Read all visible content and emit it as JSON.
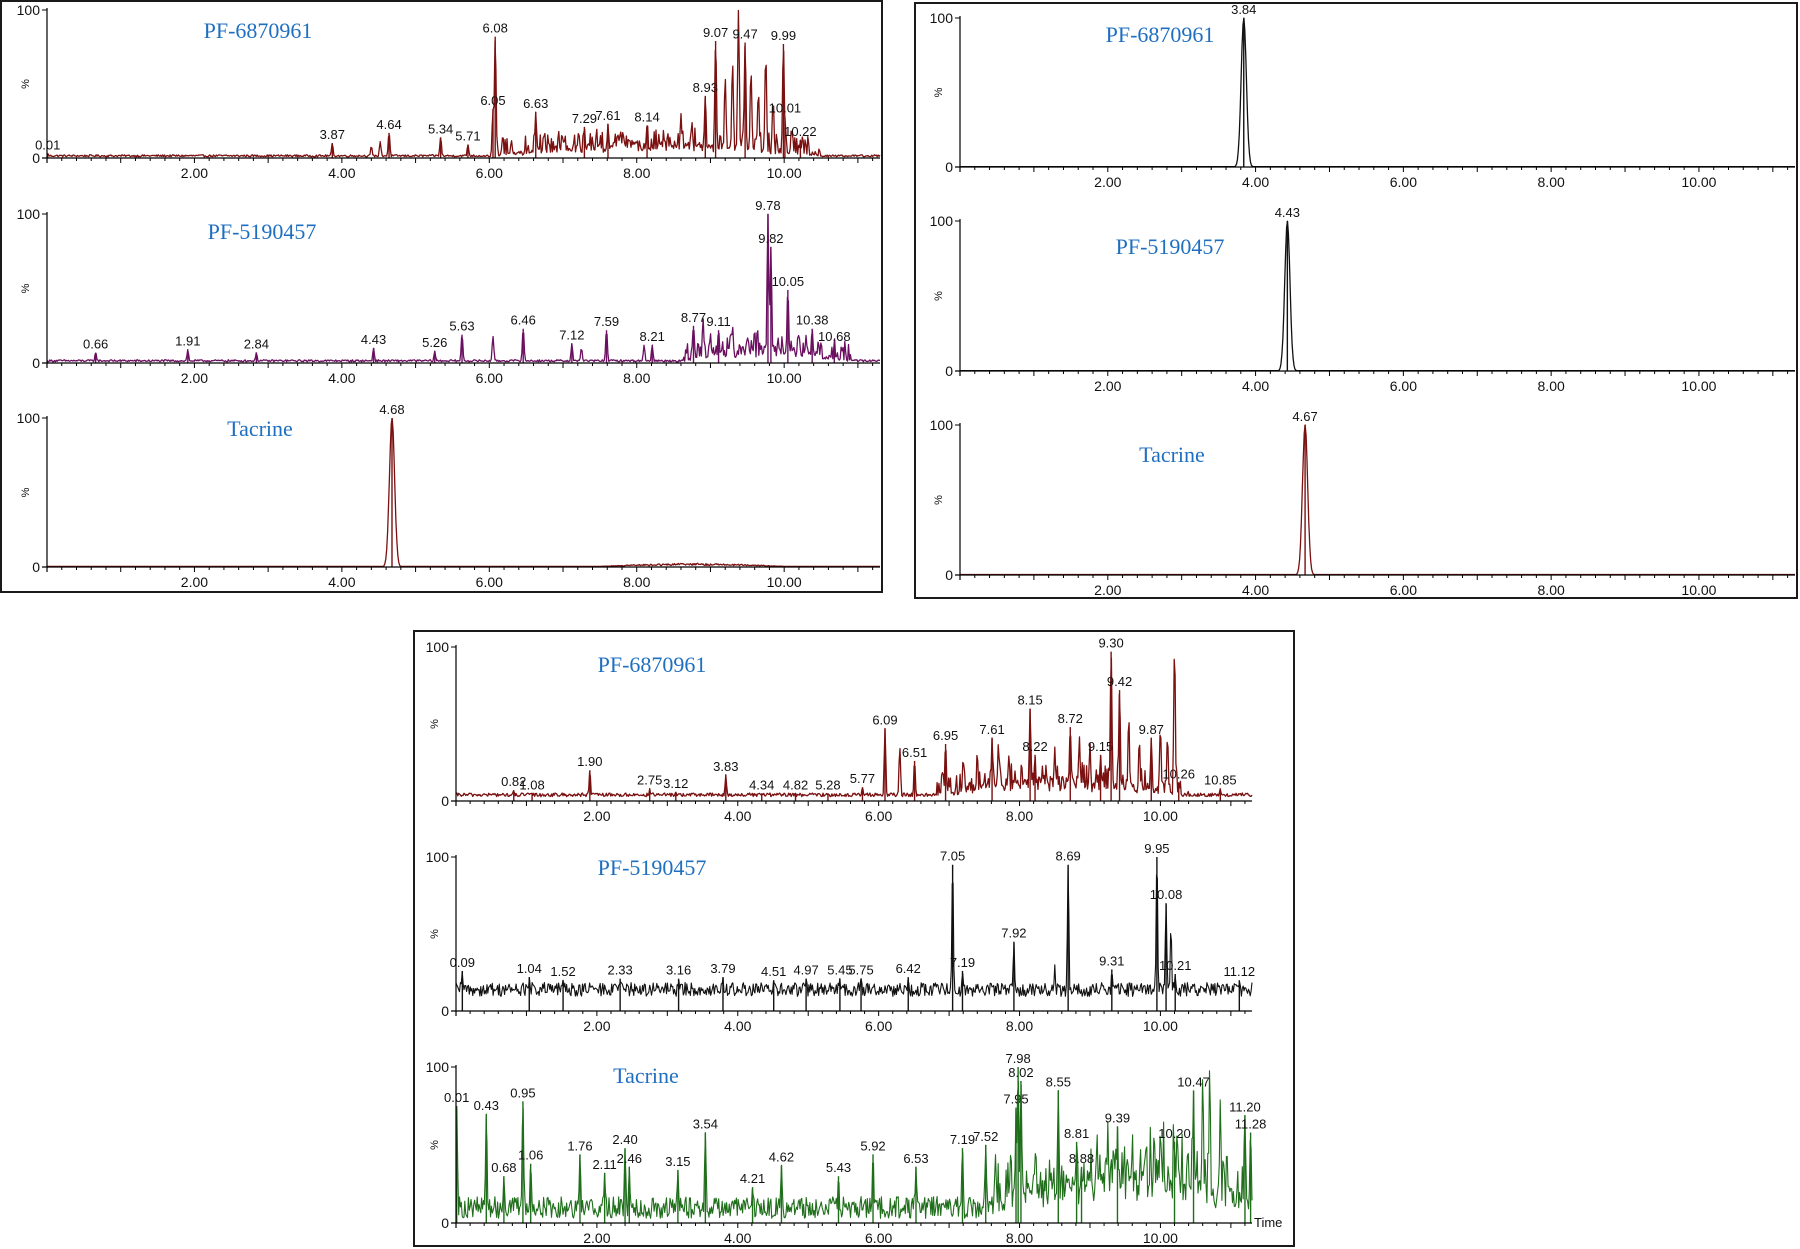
{
  "figure": {
    "colors": {
      "red": "#7a1010",
      "purple": "#6b1060",
      "black": "#111111",
      "green": "#1e6e1a",
      "title": "#1f6fc0"
    }
  },
  "chart_data": [
    {
      "id": "tl1",
      "type": "line",
      "title": "PF-6870961",
      "color": "red",
      "xlim": [
        0,
        11.3
      ],
      "ylim": [
        0,
        100
      ],
      "ylabel": "%",
      "yticks": [
        "0",
        "100"
      ],
      "xticks": [
        "2.00",
        "4.00",
        "6.00",
        "8.00",
        "10.00"
      ],
      "baseline": 1.5,
      "noise": 0.7,
      "bumpRange": [
        6.0,
        10.5
      ],
      "peaks": [
        {
          "x": 0.01,
          "y": 3,
          "label": "0.01"
        },
        {
          "x": 3.87,
          "y": 10,
          "label": "3.87"
        },
        {
          "x": 4.64,
          "y": 17,
          "label": "4.64"
        },
        {
          "x": 5.34,
          "y": 14,
          "label": "5.34"
        },
        {
          "x": 5.71,
          "y": 9,
          "label": "5.71"
        },
        {
          "x": 6.05,
          "y": 33,
          "label": "6.05"
        },
        {
          "x": 6.08,
          "y": 82,
          "label": "6.08"
        },
        {
          "x": 6.63,
          "y": 31,
          "label": "6.63"
        },
        {
          "x": 7.29,
          "y": 21,
          "label": "7.29"
        },
        {
          "x": 7.61,
          "y": 23,
          "label": "7.61"
        },
        {
          "x": 8.14,
          "y": 22,
          "label": "8.14"
        },
        {
          "x": 8.93,
          "y": 42,
          "label": "8.93"
        },
        {
          "x": 9.07,
          "y": 79,
          "label": "9.07"
        },
        {
          "x": 9.47,
          "y": 78,
          "label": "9.47"
        },
        {
          "x": 9.99,
          "y": 77,
          "label": "9.99"
        },
        {
          "x": 10.01,
          "y": 28,
          "label": "10.01"
        },
        {
          "x": 10.22,
          "y": 12,
          "label": "10.22"
        }
      ],
      "peaks_nolabel": [
        {
          "x": 4.4,
          "y": 8
        },
        {
          "x": 4.52,
          "y": 11
        },
        {
          "x": 6.3,
          "y": 12
        },
        {
          "x": 6.75,
          "y": 18
        },
        {
          "x": 6.9,
          "y": 9
        },
        {
          "x": 7.15,
          "y": 11
        },
        {
          "x": 7.45,
          "y": 15
        },
        {
          "x": 7.75,
          "y": 16
        },
        {
          "x": 7.9,
          "y": 12
        },
        {
          "x": 8.3,
          "y": 16
        },
        {
          "x": 8.45,
          "y": 14
        },
        {
          "x": 8.6,
          "y": 30
        },
        {
          "x": 8.75,
          "y": 24
        },
        {
          "x": 9.2,
          "y": 55
        },
        {
          "x": 9.3,
          "y": 65
        },
        {
          "x": 9.38,
          "y": 100
        },
        {
          "x": 9.55,
          "y": 60
        },
        {
          "x": 9.65,
          "y": 45
        },
        {
          "x": 9.75,
          "y": 70
        },
        {
          "x": 9.85,
          "y": 40
        },
        {
          "x": 10.1,
          "y": 20
        }
      ]
    },
    {
      "id": "tl2",
      "type": "line",
      "title": "PF-5190457",
      "color": "purple",
      "xlim": [
        0,
        11.3
      ],
      "ylim": [
        0,
        100
      ],
      "ylabel": "%",
      "yticks": [
        "0",
        "100"
      ],
      "xticks": [
        "2.00",
        "4.00",
        "6.00",
        "8.00",
        "10.00"
      ],
      "baseline": 1.5,
      "noise": 0.7,
      "bumpRange": [
        8.6,
        10.9
      ],
      "peaks": [
        {
          "x": 0.66,
          "y": 7,
          "label": "0.66"
        },
        {
          "x": 1.91,
          "y": 9,
          "label": "1.91"
        },
        {
          "x": 2.84,
          "y": 7,
          "label": "2.84"
        },
        {
          "x": 4.43,
          "y": 10,
          "label": "4.43"
        },
        {
          "x": 5.26,
          "y": 8,
          "label": "5.26"
        },
        {
          "x": 5.63,
          "y": 19,
          "label": "5.63"
        },
        {
          "x": 6.46,
          "y": 23,
          "label": "6.46"
        },
        {
          "x": 7.12,
          "y": 13,
          "label": "7.12"
        },
        {
          "x": 7.59,
          "y": 22,
          "label": "7.59"
        },
        {
          "x": 8.21,
          "y": 12,
          "label": "8.21"
        },
        {
          "x": 8.77,
          "y": 25,
          "label": "8.77"
        },
        {
          "x": 9.11,
          "y": 22,
          "label": "9.11"
        },
        {
          "x": 9.78,
          "y": 100,
          "label": "9.78"
        },
        {
          "x": 9.82,
          "y": 78,
          "label": "9.82"
        },
        {
          "x": 10.05,
          "y": 49,
          "label": "10.05"
        },
        {
          "x": 10.38,
          "y": 23,
          "label": "10.38"
        },
        {
          "x": 10.68,
          "y": 12,
          "label": "10.68"
        }
      ],
      "peaks_nolabel": [
        {
          "x": 6.05,
          "y": 18
        },
        {
          "x": 7.25,
          "y": 10
        },
        {
          "x": 8.1,
          "y": 12
        },
        {
          "x": 8.9,
          "y": 30
        },
        {
          "x": 9.0,
          "y": 20
        },
        {
          "x": 9.3,
          "y": 25
        },
        {
          "x": 9.5,
          "y": 18
        },
        {
          "x": 10.2,
          "y": 20
        },
        {
          "x": 10.5,
          "y": 14
        }
      ]
    },
    {
      "id": "tl3",
      "type": "line",
      "title": "Tacrine",
      "color": "red",
      "xlim": [
        0,
        11.3
      ],
      "ylim": [
        0,
        100
      ],
      "ylabel": "%",
      "yticks": [
        "0",
        "100"
      ],
      "xticks": [
        "2.00",
        "4.00",
        "6.00",
        "8.00",
        "10.00"
      ],
      "baseline": 0.4,
      "noise": 0.0,
      "bumpRange": [
        7.5,
        10.0
      ],
      "peaks": [
        {
          "x": 4.68,
          "y": 100,
          "label": "4.68",
          "wide": true
        }
      ],
      "peaks_nolabel": []
    },
    {
      "id": "tr1",
      "type": "line",
      "title": "PF-6870961",
      "color": "black",
      "xlim": [
        0,
        11.3
      ],
      "ylim": [
        0,
        100
      ],
      "ylabel": "%",
      "yticks": [
        "0",
        "100"
      ],
      "xticks": [
        "2.00",
        "4.00",
        "6.00",
        "8.00",
        "10.00"
      ],
      "baseline": 0.3,
      "noise": 0.0,
      "bumpRange": [
        0,
        0
      ],
      "peaks": [
        {
          "x": 3.84,
          "y": 100,
          "label": "3.84",
          "wide": true
        }
      ],
      "peaks_nolabel": []
    },
    {
      "id": "tr2",
      "type": "line",
      "title": "PF-5190457",
      "color": "black",
      "xlim": [
        0,
        11.3
      ],
      "ylim": [
        0,
        100
      ],
      "ylabel": "%",
      "yticks": [
        "0",
        "100"
      ],
      "xticks": [
        "2.00",
        "4.00",
        "6.00",
        "8.00",
        "10.00"
      ],
      "baseline": 0.3,
      "noise": 0.0,
      "bumpRange": [
        0,
        0
      ],
      "peaks": [
        {
          "x": 4.43,
          "y": 100,
          "label": "4.43",
          "wide": true
        }
      ],
      "peaks_nolabel": []
    },
    {
      "id": "tr3",
      "type": "line",
      "title": "Tacrine",
      "color": "red",
      "xlim": [
        0,
        11.3
      ],
      "ylim": [
        0,
        100
      ],
      "ylabel": "%",
      "yticks": [
        "0",
        "100"
      ],
      "xticks": [
        "2.00",
        "4.00",
        "6.00",
        "8.00",
        "10.00"
      ],
      "baseline": 0.3,
      "noise": 0.0,
      "bumpRange": [
        0,
        0
      ],
      "peaks": [
        {
          "x": 4.67,
          "y": 100,
          "label": "4.67",
          "wide": true
        }
      ],
      "peaks_nolabel": []
    },
    {
      "id": "b1",
      "type": "line",
      "title": "PF-6870961",
      "color": "red",
      "xlim": [
        0,
        11.3
      ],
      "ylim": [
        0,
        100
      ],
      "ylabel": "%",
      "yticks": [
        "0",
        "100"
      ],
      "xticks": [
        "2.00",
        "4.00",
        "6.00",
        "8.00",
        "10.00"
      ],
      "baseline": 4,
      "noise": 1.2,
      "bumpRange": [
        6.8,
        10.4
      ],
      "peaks": [
        {
          "x": 0.82,
          "y": 7,
          "label": "0.82"
        },
        {
          "x": 1.08,
          "y": 5,
          "label": "1.08"
        },
        {
          "x": 1.9,
          "y": 20,
          "label": "1.90"
        },
        {
          "x": 2.75,
          "y": 8,
          "label": "2.75"
        },
        {
          "x": 3.12,
          "y": 6,
          "label": "3.12"
        },
        {
          "x": 3.83,
          "y": 17,
          "label": "3.83"
        },
        {
          "x": 4.34,
          "y": 5,
          "label": "4.34"
        },
        {
          "x": 4.82,
          "y": 5,
          "label": "4.82"
        },
        {
          "x": 5.28,
          "y": 5,
          "label": "5.28"
        },
        {
          "x": 5.77,
          "y": 9,
          "label": "5.77"
        },
        {
          "x": 6.09,
          "y": 47,
          "label": "6.09"
        },
        {
          "x": 6.51,
          "y": 26,
          "label": "6.51"
        },
        {
          "x": 6.95,
          "y": 37,
          "label": "6.95"
        },
        {
          "x": 7.61,
          "y": 41,
          "label": "7.61"
        },
        {
          "x": 8.15,
          "y": 60,
          "label": "8.15"
        },
        {
          "x": 8.22,
          "y": 30,
          "label": "8.22"
        },
        {
          "x": 8.72,
          "y": 48,
          "label": "8.72"
        },
        {
          "x": 9.15,
          "y": 30,
          "label": "9.15"
        },
        {
          "x": 9.3,
          "y": 97,
          "label": "9.30"
        },
        {
          "x": 9.42,
          "y": 72,
          "label": "9.42"
        },
        {
          "x": 9.87,
          "y": 41,
          "label": "9.87"
        },
        {
          "x": 10.26,
          "y": 12,
          "label": "10.26"
        },
        {
          "x": 10.85,
          "y": 8,
          "label": "10.85"
        }
      ],
      "peaks_nolabel": [
        {
          "x": 6.3,
          "y": 35
        },
        {
          "x": 7.2,
          "y": 28
        },
        {
          "x": 7.4,
          "y": 32
        },
        {
          "x": 7.7,
          "y": 38
        },
        {
          "x": 7.85,
          "y": 30
        },
        {
          "x": 8.5,
          "y": 35
        },
        {
          "x": 8.85,
          "y": 42
        },
        {
          "x": 9.0,
          "y": 38
        },
        {
          "x": 9.55,
          "y": 55
        },
        {
          "x": 9.7,
          "y": 40
        },
        {
          "x": 10.0,
          "y": 48
        },
        {
          "x": 10.1,
          "y": 42
        },
        {
          "x": 10.2,
          "y": 100
        }
      ]
    },
    {
      "id": "b2",
      "type": "line",
      "title": "PF-5190457",
      "color": "black",
      "xlim": [
        0,
        11.3
      ],
      "ylim": [
        0,
        100
      ],
      "ylabel": "%",
      "yticks": [
        "0",
        "100"
      ],
      "xticks": [
        "2.00",
        "4.00",
        "6.00",
        "8.00",
        "10.00"
      ],
      "baseline": 14,
      "noise": 4.5,
      "bumpRange": [
        0,
        0
      ],
      "peaks": [
        {
          "x": 0.09,
          "y": 26,
          "label": "0.09"
        },
        {
          "x": 1.04,
          "y": 22,
          "label": "1.04"
        },
        {
          "x": 1.52,
          "y": 20,
          "label": "1.52"
        },
        {
          "x": 2.33,
          "y": 21,
          "label": "2.33"
        },
        {
          "x": 3.16,
          "y": 21,
          "label": "3.16"
        },
        {
          "x": 3.79,
          "y": 22,
          "label": "3.79"
        },
        {
          "x": 4.51,
          "y": 20,
          "label": "4.51"
        },
        {
          "x": 4.97,
          "y": 21,
          "label": "4.97"
        },
        {
          "x": 5.45,
          "y": 21,
          "label": "5.45"
        },
        {
          "x": 5.75,
          "y": 21,
          "label": "5.75"
        },
        {
          "x": 6.42,
          "y": 22,
          "label": "6.42"
        },
        {
          "x": 7.05,
          "y": 95,
          "label": "7.05"
        },
        {
          "x": 7.19,
          "y": 26,
          "label": "7.19"
        },
        {
          "x": 7.92,
          "y": 45,
          "label": "7.92"
        },
        {
          "x": 8.69,
          "y": 95,
          "label": "8.69"
        },
        {
          "x": 9.31,
          "y": 27,
          "label": "9.31"
        },
        {
          "x": 9.95,
          "y": 100,
          "label": "9.95"
        },
        {
          "x": 10.08,
          "y": 70,
          "label": "10.08"
        },
        {
          "x": 10.21,
          "y": 24,
          "label": "10.21"
        },
        {
          "x": 11.12,
          "y": 20,
          "label": "11.12"
        }
      ],
      "peaks_nolabel": [
        {
          "x": 8.5,
          "y": 30
        },
        {
          "x": 10.15,
          "y": 55
        }
      ]
    },
    {
      "id": "b3",
      "type": "line",
      "title": "Tacrine",
      "color": "green",
      "xlim": [
        0,
        11.3
      ],
      "ylim": [
        0,
        100
      ],
      "ylabel": "%",
      "yticks": [
        "0",
        "100"
      ],
      "xticks": [
        "2.00",
        "4.00",
        "6.00",
        "8.00",
        "10.00"
      ],
      "xAxisLabel": "Time",
      "baseline": 10,
      "noise": 7,
      "bumpRange": [
        7.5,
        11.3
      ],
      "peaks": [
        {
          "x": 0.01,
          "y": 75,
          "label": "0.01"
        },
        {
          "x": 0.43,
          "y": 70,
          "label": "0.43"
        },
        {
          "x": 0.68,
          "y": 30,
          "label": "0.68"
        },
        {
          "x": 0.95,
          "y": 78,
          "label": "0.95"
        },
        {
          "x": 1.06,
          "y": 38,
          "label": "1.06"
        },
        {
          "x": 1.76,
          "y": 44,
          "label": "1.76"
        },
        {
          "x": 2.11,
          "y": 32,
          "label": "2.11"
        },
        {
          "x": 2.4,
          "y": 48,
          "label": "2.40"
        },
        {
          "x": 2.46,
          "y": 36,
          "label": "2.46"
        },
        {
          "x": 3.15,
          "y": 34,
          "label": "3.15"
        },
        {
          "x": 3.54,
          "y": 58,
          "label": "3.54"
        },
        {
          "x": 4.21,
          "y": 23,
          "label": "4.21"
        },
        {
          "x": 4.62,
          "y": 37,
          "label": "4.62"
        },
        {
          "x": 5.43,
          "y": 30,
          "label": "5.43"
        },
        {
          "x": 5.92,
          "y": 44,
          "label": "5.92"
        },
        {
          "x": 6.53,
          "y": 36,
          "label": "6.53"
        },
        {
          "x": 7.19,
          "y": 48,
          "label": "7.19"
        },
        {
          "x": 7.52,
          "y": 50,
          "label": "7.52"
        },
        {
          "x": 7.95,
          "y": 74,
          "label": "7.95"
        },
        {
          "x": 7.98,
          "y": 100,
          "label": "7.98"
        },
        {
          "x": 8.02,
          "y": 91,
          "label": "8.02"
        },
        {
          "x": 8.55,
          "y": 85,
          "label": "8.55"
        },
        {
          "x": 8.81,
          "y": 52,
          "label": "8.81"
        },
        {
          "x": 8.88,
          "y": 36,
          "label": "8.88"
        },
        {
          "x": 9.39,
          "y": 62,
          "label": "9.39"
        },
        {
          "x": 10.2,
          "y": 52,
          "label": "10.20"
        },
        {
          "x": 10.47,
          "y": 85,
          "label": "10.47"
        },
        {
          "x": 11.2,
          "y": 69,
          "label": "11.20"
        },
        {
          "x": 11.28,
          "y": 58,
          "label": "11.28"
        }
      ],
      "peaks_nolabel": [
        {
          "x": 10.6,
          "y": 95
        },
        {
          "x": 10.7,
          "y": 100
        },
        {
          "x": 10.85,
          "y": 80
        },
        {
          "x": 10.0,
          "y": 60
        },
        {
          "x": 9.8,
          "y": 55
        },
        {
          "x": 9.1,
          "y": 58
        }
      ]
    }
  ]
}
